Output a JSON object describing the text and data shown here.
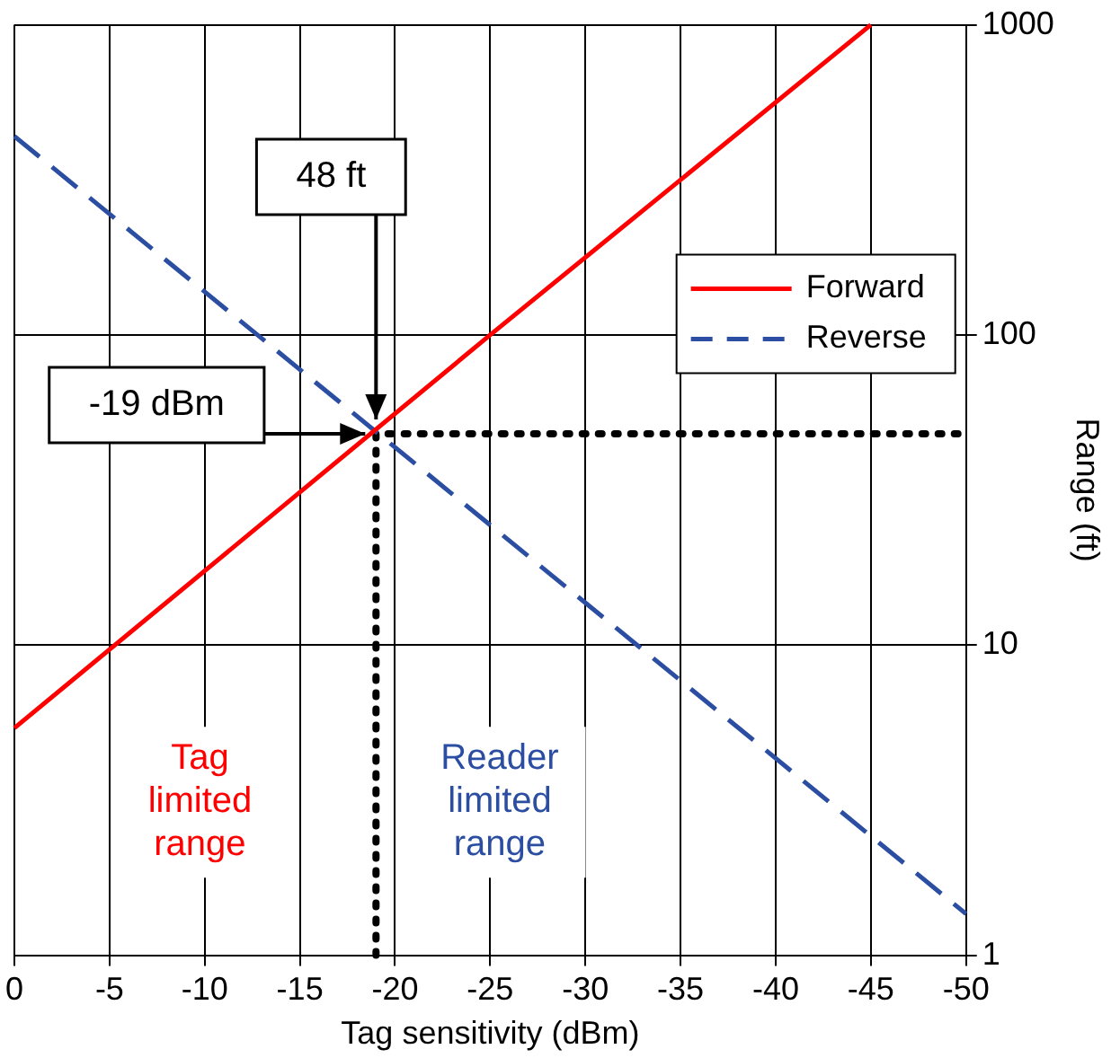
{
  "chart_data": {
    "type": "line",
    "xlabel": "Tag sensitivity (dBm)",
    "ylabel": "Range (ft)",
    "xlim": [
      0,
      -50
    ],
    "xticks": [
      0,
      -5,
      -10,
      -15,
      -20,
      -25,
      -30,
      -35,
      -40,
      -45,
      -50
    ],
    "ylim": [
      1,
      1000
    ],
    "yticks": [
      1,
      10,
      100,
      1000
    ],
    "log": "y",
    "grid": true,
    "legend": "top right",
    "marker": "none",
    "series": [
      {
        "name": "Forward",
        "color": "#ff0000",
        "x": [
          0,
          -25,
          -45
        ],
        "values": [
          5.4,
          100,
          1000
        ],
        "line_style": "solid"
      },
      {
        "name": "Reverse",
        "color": "#2b4ea2",
        "x": [
          0,
          -50
        ],
        "values": [
          437,
          1.36
        ],
        "line_style": "dashed"
      },
      {
        "color": "#000000",
        "x": [
          -19,
          -19,
          -50
        ],
        "values": [
          1,
          48,
          48
        ],
        "line_style": "dotted"
      }
    ],
    "annotations": [
      {
        "text": "48 ft",
        "x": -19,
        "y": 48
      },
      {
        "text": "-19 dBm",
        "x": -19,
        "y": 48
      },
      "Tag limited range",
      "Reader limited range"
    ]
  }
}
